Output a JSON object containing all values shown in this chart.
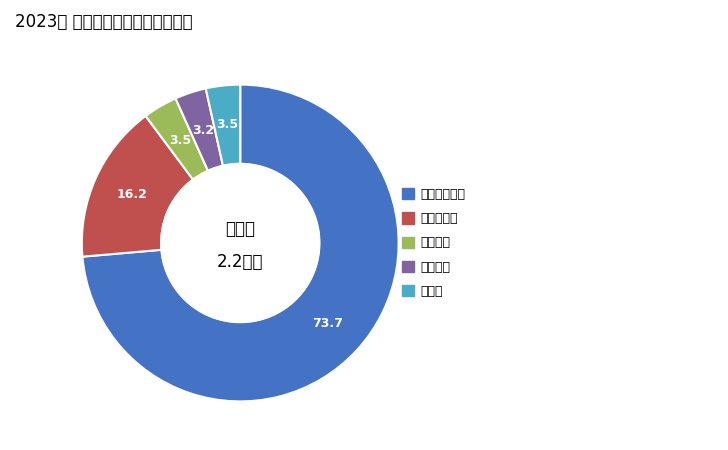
{
  "title": "2023年 輸出相手国のシェア（％）",
  "labels": [
    "インドネシア",
    "フィリピン",
    "メキシコ",
    "ベトナム",
    "その他"
  ],
  "values": [
    73.7,
    16.2,
    3.5,
    3.2,
    3.5
  ],
  "colors": [
    "#4472C4",
    "#C0504D",
    "#9BBB59",
    "#8064A2",
    "#4BACC6"
  ],
  "center_text_line1": "総　額",
  "center_text_line2": "2.2億円",
  "background_color": "#FFFFFF",
  "wedge_labels": [
    "73.7",
    "16.2",
    "3.5",
    "3.2",
    "3.5"
  ],
  "donut_width": 0.5
}
